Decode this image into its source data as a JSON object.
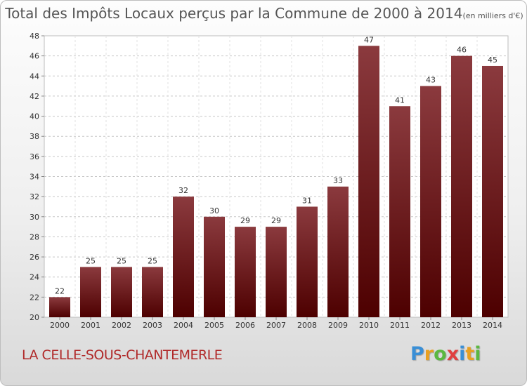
{
  "chart_data": {
    "type": "bar",
    "title": "Total des Impôts Locaux perçus par la Commune de 2000 à 2014",
    "unit": "(en milliers d'€)",
    "categories": [
      "2000",
      "2001",
      "2002",
      "2003",
      "2004",
      "2005",
      "2006",
      "2007",
      "2008",
      "2009",
      "2010",
      "2011",
      "2012",
      "2013",
      "2014"
    ],
    "values": [
      22,
      25,
      25,
      25,
      32,
      30,
      29,
      29,
      31,
      33,
      47,
      41,
      43,
      46,
      45
    ],
    "data_labels": [
      "22",
      "25",
      "25",
      "25",
      "32",
      "30",
      "29",
      "29",
      "31",
      "33",
      "47",
      "41",
      "43",
      "46",
      "45"
    ],
    "yticks": [
      "20",
      "22",
      "24",
      "26",
      "28",
      "30",
      "32",
      "34",
      "36",
      "38",
      "40",
      "42",
      "44",
      "46",
      "48"
    ],
    "ylim": [
      20,
      48
    ],
    "grid": true,
    "bar_color_top": "#8b3a3e",
    "bar_color_bottom": "#4d0000"
  },
  "commune_name": "LA CELLE-SOUS-CHANTEMERLE",
  "logo": {
    "letters": [
      "P",
      "r",
      "o",
      "x",
      "i",
      "t",
      "i"
    ],
    "colors": [
      "#3a8fd6",
      "#e8a020",
      "#5bb840",
      "#e04040",
      "#3a8fd6",
      "#e8a020",
      "#5bb840"
    ]
  }
}
